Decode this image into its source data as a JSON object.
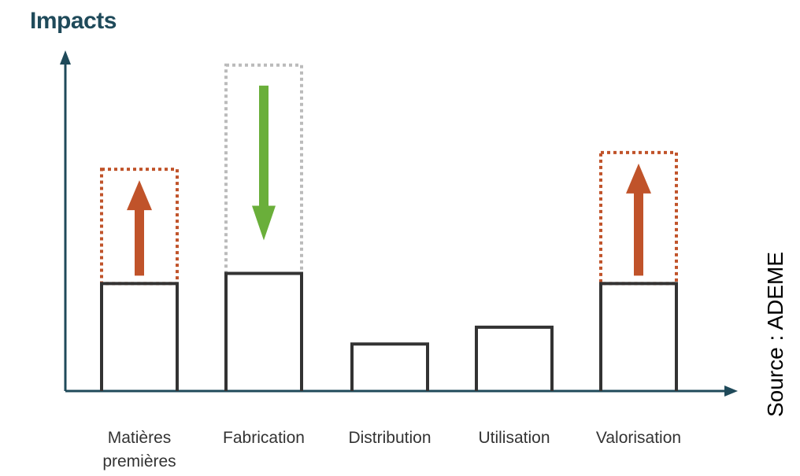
{
  "diagram": {
    "y_axis_title": "Impacts",
    "source_note": "Source : ADEME",
    "colors": {
      "axis": "#1f4a5a",
      "bar_outline": "#333333",
      "increase": "#c0532a",
      "decrease": "#6aaf3a",
      "dotted_neutral": "#bbbbbb"
    },
    "stages": [
      {
        "label": "Matières\npremières",
        "level": 0.32,
        "change": "increase",
        "projected_level": 0.66
      },
      {
        "label": "Fabrication",
        "level": 0.35,
        "change": "decrease",
        "projected_level": 0.97
      },
      {
        "label": "Distribution",
        "level": 0.14,
        "change": "none"
      },
      {
        "label": "Utilisation",
        "level": 0.19,
        "change": "none"
      },
      {
        "label": "Valorisation",
        "level": 0.32,
        "change": "increase",
        "projected_level": 0.71
      }
    ]
  }
}
